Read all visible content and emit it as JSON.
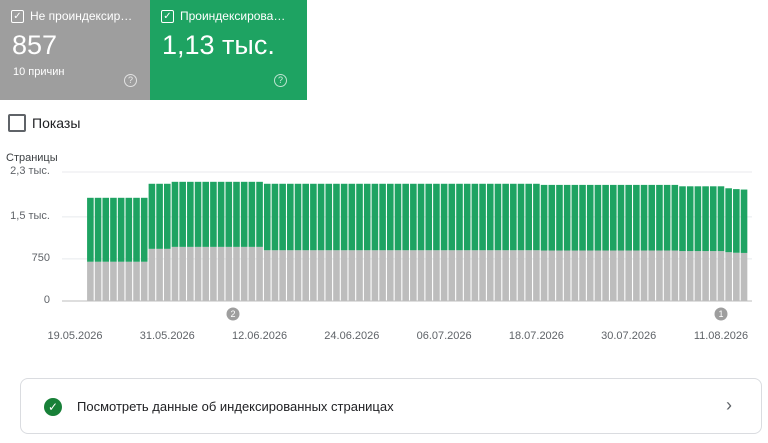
{
  "cards": [
    {
      "title": "Не проиндексир…",
      "value": "857",
      "subtitle": "10 причин"
    },
    {
      "title": "Проиндексирова…",
      "value": "1,13 тыс."
    }
  ],
  "impressions_label": "Показы",
  "chart_data": {
    "type": "stacked-bar",
    "y_label": "Страницы",
    "categories": [
      "19.05.2026",
      null,
      null,
      null,
      null,
      null,
      null,
      null,
      null,
      null,
      null,
      null,
      "31.05.2026",
      null,
      null,
      null,
      null,
      null,
      null,
      null,
      null,
      null,
      null,
      null,
      "12.06.2026",
      null,
      null,
      null,
      null,
      null,
      null,
      null,
      null,
      null,
      null,
      null,
      "24.06.2026",
      null,
      null,
      null,
      null,
      null,
      null,
      null,
      null,
      null,
      null,
      null,
      "06.07.2026",
      null,
      null,
      null,
      null,
      null,
      null,
      null,
      null,
      null,
      null,
      null,
      "18.07.2026",
      null,
      null,
      null,
      null,
      null,
      null,
      null,
      null,
      null,
      null,
      null,
      "30.07.2026",
      null,
      null,
      null,
      null,
      null,
      null,
      null,
      null,
      null,
      null,
      null,
      "11.08.2026",
      null,
      null,
      null
    ],
    "series": [
      {
        "color": "#bdbdbd",
        "values": [
          null,
          null,
          700,
          700,
          700,
          700,
          700,
          700,
          700,
          700,
          930,
          930,
          930,
          965,
          965,
          965,
          965,
          965,
          965,
          965,
          965,
          965,
          965,
          965,
          965,
          905,
          905,
          905,
          905,
          905,
          905,
          905,
          905,
          905,
          905,
          905,
          905,
          905,
          905,
          905,
          905,
          905,
          905,
          905,
          905,
          905,
          905,
          905,
          905,
          905,
          905,
          905,
          905,
          905,
          905,
          905,
          905,
          905,
          905,
          905,
          905,
          900,
          900,
          900,
          900,
          900,
          900,
          900,
          900,
          900,
          900,
          900,
          900,
          900,
          900,
          900,
          900,
          900,
          900,
          890,
          890,
          890,
          890,
          890,
          890,
          870,
          860,
          857
        ]
      },
      {
        "color": "#1ea362",
        "values": [
          null,
          null,
          1140,
          1140,
          1140,
          1140,
          1140,
          1140,
          1140,
          1140,
          1160,
          1160,
          1160,
          1160,
          1160,
          1160,
          1160,
          1160,
          1160,
          1160,
          1160,
          1160,
          1160,
          1160,
          1160,
          1185,
          1185,
          1185,
          1185,
          1185,
          1185,
          1185,
          1185,
          1185,
          1185,
          1185,
          1185,
          1185,
          1185,
          1185,
          1185,
          1185,
          1185,
          1185,
          1185,
          1185,
          1185,
          1185,
          1185,
          1185,
          1185,
          1185,
          1185,
          1185,
          1185,
          1185,
          1185,
          1185,
          1185,
          1185,
          1185,
          1170,
          1170,
          1170,
          1170,
          1170,
          1170,
          1170,
          1170,
          1170,
          1170,
          1170,
          1170,
          1170,
          1170,
          1170,
          1170,
          1170,
          1170,
          1155,
          1155,
          1155,
          1155,
          1155,
          1155,
          1140,
          1135,
          1130
        ]
      }
    ],
    "ylim": [
      0,
      2300
    ],
    "yticks": [
      0,
      750,
      {
        "value": 1500,
        "label": "1,5 тыс."
      },
      {
        "value": 2300,
        "label": "2,3 тыс."
      }
    ],
    "grid": true,
    "annotations": [
      "2",
      "1"
    ]
  },
  "link": "Посмотреть данные об индексированных страницах"
}
